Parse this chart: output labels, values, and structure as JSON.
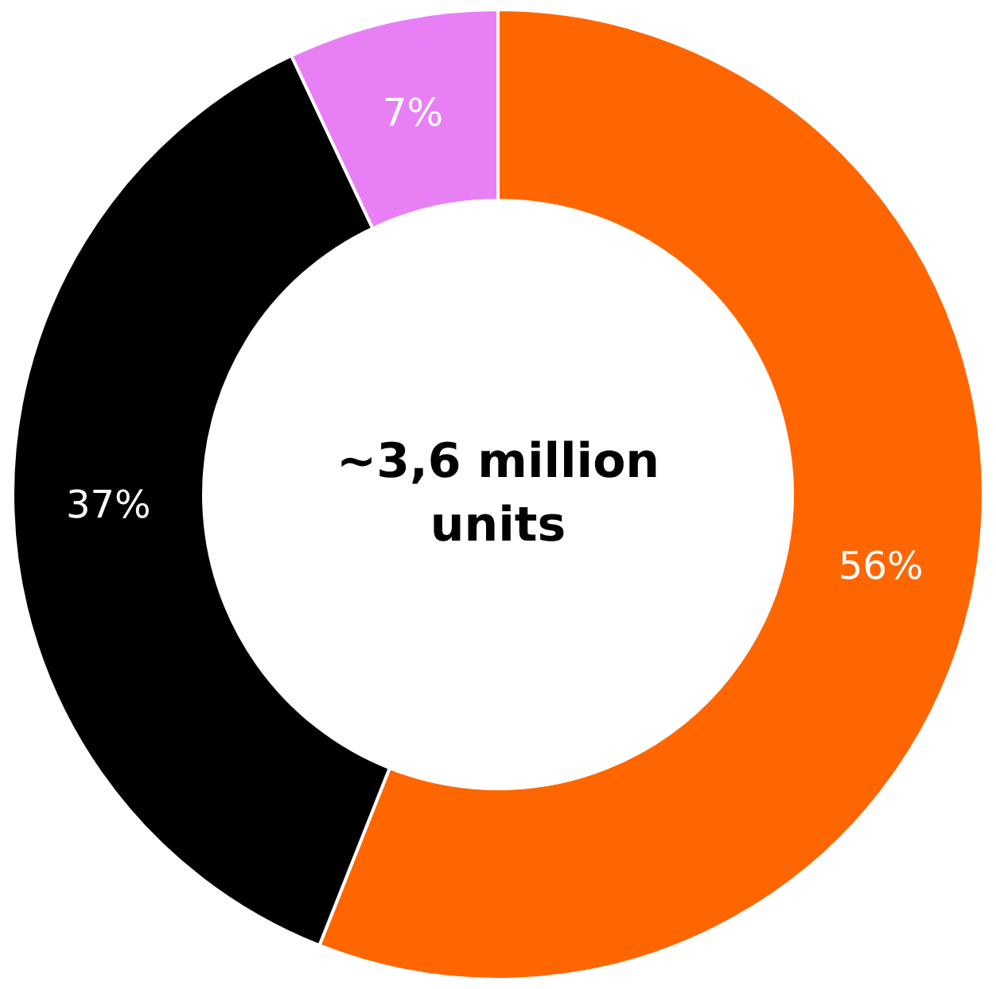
{
  "chart_data": {
    "type": "donut",
    "categories": [
      null,
      null,
      null
    ],
    "values": [
      56,
      37,
      7
    ],
    "colors": [
      "#ff6600",
      "#000000",
      "#e87ff5"
    ],
    "value_labels": [
      "56%",
      "37%",
      "7%"
    ],
    "annotations": [
      "~3,6 million units"
    ]
  }
}
